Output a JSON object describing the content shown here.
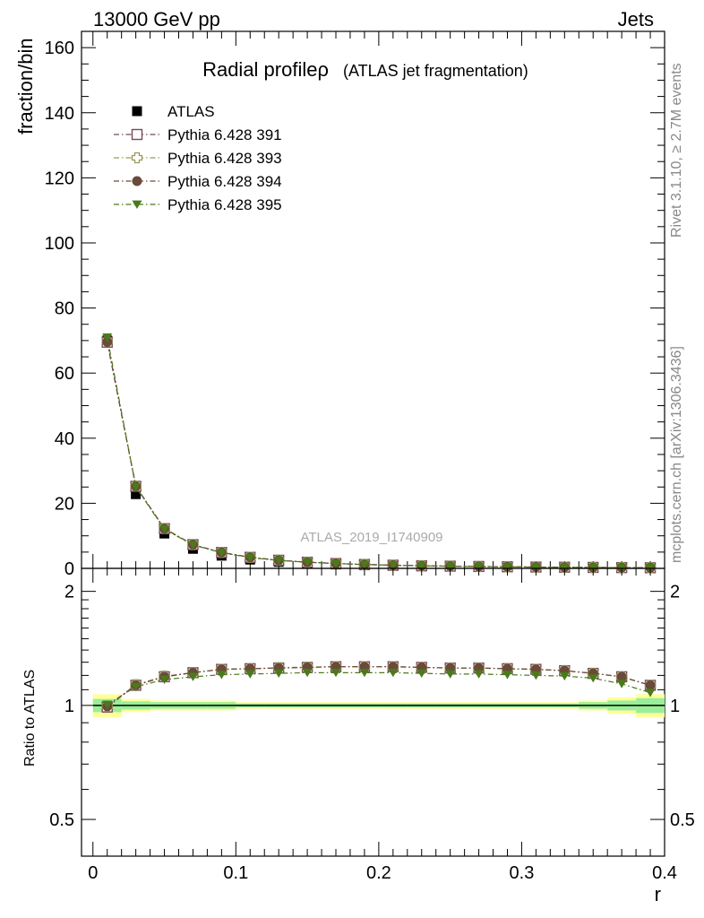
{
  "header": {
    "energy_label": "13000 GeV pp",
    "category_label": "Jets"
  },
  "side_texts": {
    "rivet": "Rivet 3.1.10, ≥ 2.7M events",
    "source": "mcplots.cern.ch [arXiv:1306.3436]"
  },
  "chart_data": [
    {
      "type": "scatter",
      "title": "Radial profileρ",
      "subtitle": "(ATLAS jet fragmentation)",
      "watermark": "ATLAS_2019_I1740909",
      "xlabel": "r",
      "ylabel": "fraction/bin",
      "xlim": [
        -0.008,
        0.4
      ],
      "ylim": [
        0,
        165
      ],
      "yticks": [
        0,
        20,
        40,
        60,
        80,
        100,
        120,
        140,
        160
      ],
      "xticks": [
        0,
        0.1,
        0.2,
        0.3,
        0.4
      ],
      "xtick_labels": [
        "0",
        "0.1",
        "0.2",
        "0.3",
        "0.4"
      ],
      "legend_position": "top-left",
      "x": [
        0.01,
        0.03,
        0.05,
        0.07,
        0.09,
        0.11,
        0.13,
        0.15,
        0.17,
        0.19,
        0.21,
        0.23,
        0.25,
        0.27,
        0.29,
        0.31,
        0.33,
        0.35,
        0.37,
        0.39
      ],
      "series": [
        {
          "name": "ATLAS",
          "marker": "square-filled",
          "color": "#000000",
          "values": [
            70.0,
            22.8,
            10.7,
            6.0,
            3.9,
            2.7,
            2.0,
            1.55,
            1.2,
            0.95,
            0.78,
            0.64,
            0.54,
            0.46,
            0.39,
            0.33,
            0.28,
            0.24,
            0.2,
            0.17
          ]
        },
        {
          "name": "Pythia 6.428 391",
          "marker": "square-open",
          "color": "#7a4a5a",
          "values": [
            69.5,
            25.2,
            12.2,
            7.3,
            4.9,
            3.4,
            2.5,
            1.9,
            1.5,
            1.2,
            0.98,
            0.8,
            0.68,
            0.58,
            0.49,
            0.41,
            0.35,
            0.29,
            0.24,
            0.19
          ]
        },
        {
          "name": "Pythia 6.428 393",
          "marker": "cross-open",
          "color": "#9a9a5a",
          "values": [
            69.8,
            25.3,
            12.3,
            7.3,
            4.9,
            3.4,
            2.5,
            1.9,
            1.5,
            1.2,
            0.98,
            0.8,
            0.68,
            0.58,
            0.49,
            0.41,
            0.35,
            0.29,
            0.24,
            0.19
          ]
        },
        {
          "name": "Pythia 6.428 394",
          "marker": "circle-filled",
          "color": "#6a4a3a",
          "values": [
            69.6,
            25.2,
            12.2,
            7.3,
            4.9,
            3.4,
            2.5,
            1.9,
            1.5,
            1.2,
            0.98,
            0.8,
            0.68,
            0.58,
            0.49,
            0.41,
            0.35,
            0.29,
            0.24,
            0.19
          ]
        },
        {
          "name": "Pythia 6.428 395",
          "marker": "triangle-down-filled",
          "color": "#4a7a1a",
          "values": [
            71.0,
            25.0,
            12.0,
            7.2,
            4.8,
            3.3,
            2.45,
            1.88,
            1.48,
            1.18,
            0.96,
            0.79,
            0.66,
            0.57,
            0.48,
            0.4,
            0.34,
            0.28,
            0.23,
            0.18
          ]
        }
      ]
    },
    {
      "type": "scatter",
      "ylabel": "Ratio to ATLAS",
      "xlabel": "r",
      "yscale": "log",
      "ylim": [
        0.4,
        2.3
      ],
      "yticks": [
        0.5,
        1,
        2
      ],
      "ytick_labels": [
        "0.5",
        "1",
        "2"
      ],
      "xlim": [
        -0.008,
        0.4
      ],
      "x": [
        0.01,
        0.03,
        0.05,
        0.07,
        0.09,
        0.11,
        0.13,
        0.15,
        0.17,
        0.19,
        0.21,
        0.23,
        0.25,
        0.27,
        0.29,
        0.31,
        0.33,
        0.35,
        0.37,
        0.39
      ],
      "band_yellow": [
        0.07,
        0.04,
        0.03,
        0.03,
        0.03,
        0.02,
        0.02,
        0.02,
        0.02,
        0.02,
        0.02,
        0.02,
        0.02,
        0.02,
        0.02,
        0.02,
        0.02,
        0.03,
        0.05,
        0.07
      ],
      "band_green": [
        0.04,
        0.025,
        0.02,
        0.02,
        0.02,
        0.012,
        0.012,
        0.012,
        0.012,
        0.012,
        0.012,
        0.012,
        0.012,
        0.012,
        0.012,
        0.012,
        0.012,
        0.02,
        0.03,
        0.045
      ],
      "series": [
        {
          "name": "Pythia 6.428 391",
          "marker": "square-open",
          "color": "#7a4a5a",
          "values": [
            0.99,
            1.13,
            1.19,
            1.22,
            1.245,
            1.25,
            1.255,
            1.26,
            1.265,
            1.265,
            1.265,
            1.26,
            1.255,
            1.255,
            1.25,
            1.245,
            1.235,
            1.215,
            1.19,
            1.13
          ]
        },
        {
          "name": "Pythia 6.428 393",
          "marker": "cross-open",
          "color": "#9a9a5a",
          "values": [
            0.995,
            1.135,
            1.195,
            1.22,
            1.245,
            1.25,
            1.258,
            1.262,
            1.265,
            1.265,
            1.265,
            1.26,
            1.255,
            1.255,
            1.25,
            1.245,
            1.235,
            1.215,
            1.19,
            1.13
          ]
        },
        {
          "name": "Pythia 6.428 394",
          "marker": "circle-filled",
          "color": "#6a4a3a",
          "values": [
            0.995,
            1.13,
            1.19,
            1.22,
            1.245,
            1.25,
            1.255,
            1.26,
            1.265,
            1.265,
            1.265,
            1.26,
            1.255,
            1.255,
            1.25,
            1.245,
            1.235,
            1.215,
            1.19,
            1.13
          ]
        },
        {
          "name": "Pythia 6.428 395",
          "marker": "triangle-down-filled",
          "color": "#4a7a1a",
          "values": [
            1.005,
            1.12,
            1.17,
            1.19,
            1.205,
            1.21,
            1.215,
            1.22,
            1.22,
            1.22,
            1.22,
            1.215,
            1.21,
            1.21,
            1.205,
            1.2,
            1.195,
            1.18,
            1.14,
            1.08
          ]
        }
      ]
    }
  ]
}
